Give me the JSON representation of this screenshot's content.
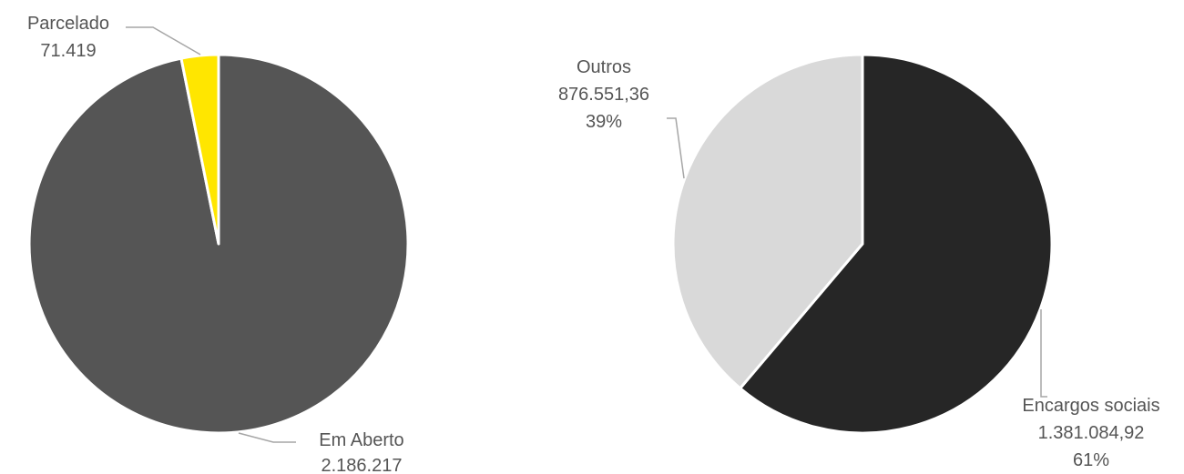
{
  "chart_data": [
    {
      "type": "pie",
      "title": "",
      "slices": [
        {
          "label": "Em Aberto",
          "value": 2186217,
          "value_text": "2.186.217",
          "color": "#555555"
        },
        {
          "label": "Parcelado",
          "value": 71419,
          "value_text": "71.419",
          "color": "#ffe600"
        }
      ],
      "start_angle_deg": 0,
      "direction": "clockwise",
      "legend": "none",
      "data_labels": "outside with leader lines"
    },
    {
      "type": "pie",
      "title": "",
      "slices": [
        {
          "label": "Encargos sociais",
          "value": 1381084.92,
          "value_text": "1.381.084,92",
          "percent_text": "61%",
          "color": "#262626"
        },
        {
          "label": "Outros",
          "value": 876551.36,
          "value_text": "876.551,36",
          "percent_text": "39%",
          "color": "#d9d9d9"
        }
      ],
      "start_angle_deg": 0,
      "direction": "clockwise",
      "legend": "none",
      "data_labels": "outside with leader lines"
    }
  ]
}
